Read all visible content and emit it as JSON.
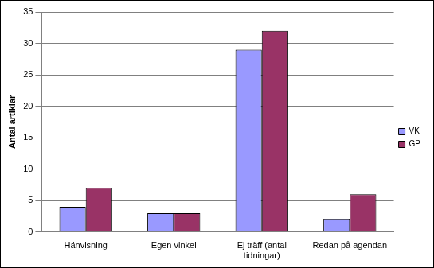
{
  "chart_data": {
    "type": "bar",
    "categories": [
      "Hänvisning",
      "Egen vinkel",
      "Ej träff (antal tidningar)",
      "Redan på agendan"
    ],
    "series": [
      {
        "name": "VK",
        "color": "#9999ff",
        "values": [
          4,
          3,
          29,
          2
        ]
      },
      {
        "name": "GP",
        "color": "#993366",
        "values": [
          7,
          3,
          32,
          6
        ]
      }
    ],
    "y_label": "Antal artiklar",
    "ylim": [
      0,
      35
    ],
    "yticks": [
      0,
      5,
      10,
      15,
      20,
      25,
      30,
      35
    ],
    "grid": true,
    "legend": "right"
  }
}
